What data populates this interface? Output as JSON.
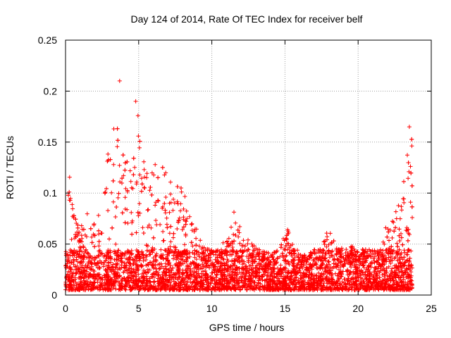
{
  "chart_data": {
    "type": "scatter",
    "title": "Day 124 of 2014, Rate Of TEC Index for receiver belf",
    "xlabel": "GPS time / hours",
    "ylabel": "ROTI / TECUs",
    "xlim": [
      0,
      25
    ],
    "ylim": [
      0,
      0.25
    ],
    "x_ticks": [
      0,
      5,
      10,
      15,
      20,
      25
    ],
    "x_tick_labels": [
      "0",
      "5",
      "10",
      "15",
      "20",
      "25"
    ],
    "y_ticks": [
      0,
      0.05,
      0.1,
      0.15,
      0.2,
      0.25
    ],
    "y_tick_labels": [
      "0",
      "0.05",
      "0.1",
      "0.15",
      "0.2",
      "0.25"
    ],
    "grid": true,
    "marker": "+",
    "marker_color": "#ff0000",
    "data_x_range": [
      0,
      23.7
    ],
    "series": [
      {
        "name": "ROTI",
        "envelope_hours": [
          0,
          0.25,
          0.5,
          1,
          1.5,
          2,
          2.5,
          2.8,
          3.2,
          3.7,
          4,
          4.5,
          5,
          5.5,
          6,
          6.5,
          7,
          7.5,
          8,
          8.5,
          9,
          9.5,
          10,
          10.5,
          11,
          11.5,
          12,
          12.5,
          13,
          13.5,
          14,
          14.5,
          15,
          15.5,
          16,
          16.5,
          17,
          17.5,
          18,
          18.5,
          19,
          19.5,
          20,
          20.5,
          21,
          21.5,
          22,
          22.5,
          23,
          23.3,
          23.6,
          23.7
        ],
        "envelope_max": [
          0.12,
          0.13,
          0.1,
          0.07,
          0.08,
          0.07,
          0.09,
          0.145,
          0.16,
          0.165,
          0.14,
          0.15,
          0.175,
          0.12,
          0.135,
          0.13,
          0.12,
          0.11,
          0.105,
          0.09,
          0.065,
          0.05,
          0.045,
          0.05,
          0.055,
          0.085,
          0.065,
          0.06,
          0.05,
          0.045,
          0.04,
          0.045,
          0.07,
          0.055,
          0.04,
          0.04,
          0.045,
          0.05,
          0.072,
          0.055,
          0.045,
          0.05,
          0.045,
          0.045,
          0.05,
          0.055,
          0.07,
          0.085,
          0.1,
          0.13,
          0.165,
          0.15
        ],
        "outliers": [
          {
            "x": 3.7,
            "y": 0.21
          },
          {
            "x": 4.95,
            "y": 0.176
          },
          {
            "x": 4.8,
            "y": 0.19
          },
          {
            "x": 3.3,
            "y": 0.163
          },
          {
            "x": 23.5,
            "y": 0.165
          }
        ]
      }
    ]
  }
}
